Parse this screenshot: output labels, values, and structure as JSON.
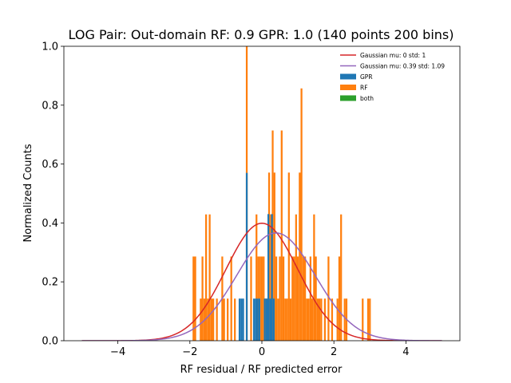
{
  "chart_data": {
    "type": "bar",
    "title": "LOG Pair: Out-domain RF: 0.9 GPR: 1.0 (140 points 200 bins)",
    "xlabel": "RF residual / RF predicted error",
    "ylabel": "Normalized Counts",
    "xlim": [
      -5.5,
      5.5
    ],
    "ylim": [
      0,
      1.0
    ],
    "xticks": [
      -4,
      -2,
      0,
      2,
      4
    ],
    "yticks": [
      0.0,
      0.2,
      0.4,
      0.6,
      0.8,
      1.0
    ],
    "xtick_labels": [
      "−4",
      "−2",
      "0",
      "2",
      "4"
    ],
    "ytick_labels": [
      "0.0",
      "0.2",
      "0.4",
      "0.6",
      "0.8",
      "1.0"
    ],
    "grid": false,
    "legend_position": "top-right",
    "bin_width": 0.05,
    "series": [
      {
        "name": "GPR",
        "kind": "histogram",
        "color": "#1f77b4",
        "bins": [
          {
            "x": -0.62,
            "y": 0.143
          },
          {
            "x": -0.57,
            "y": 0.143
          },
          {
            "x": -0.52,
            "y": 0.143
          },
          {
            "x": -0.42,
            "y": 0.57
          },
          {
            "x": -0.22,
            "y": 0.143
          },
          {
            "x": -0.17,
            "y": 0.143
          },
          {
            "x": -0.12,
            "y": 0.143
          },
          {
            "x": -0.07,
            "y": 0.143
          },
          {
            "x": 0.08,
            "y": 0.143
          },
          {
            "x": 0.13,
            "y": 0.143
          },
          {
            "x": 0.18,
            "y": 0.43
          },
          {
            "x": 0.23,
            "y": 0.143
          },
          {
            "x": 0.28,
            "y": 0.43
          },
          {
            "x": 0.33,
            "y": 0.143
          }
        ]
      },
      {
        "name": "RF",
        "kind": "histogram",
        "color": "#ff7f0e",
        "bins": [
          {
            "x": -1.9,
            "y": 0.286
          },
          {
            "x": -1.85,
            "y": 0.286
          },
          {
            "x": -1.7,
            "y": 0.143
          },
          {
            "x": -1.65,
            "y": 0.286
          },
          {
            "x": -1.6,
            "y": 0.143
          },
          {
            "x": -1.55,
            "y": 0.429
          },
          {
            "x": -1.5,
            "y": 0.143
          },
          {
            "x": -1.45,
            "y": 0.429
          },
          {
            "x": -1.4,
            "y": 0.143
          },
          {
            "x": -1.35,
            "y": 0.143
          },
          {
            "x": -1.25,
            "y": 0.143
          },
          {
            "x": -1.1,
            "y": 0.286
          },
          {
            "x": -1.05,
            "y": 0.143
          },
          {
            "x": -0.95,
            "y": 0.143
          },
          {
            "x": -0.85,
            "y": 0.286
          },
          {
            "x": -0.75,
            "y": 0.143
          },
          {
            "x": -0.42,
            "y": 1.0
          },
          {
            "x": -0.3,
            "y": 0.286
          },
          {
            "x": -0.15,
            "y": 0.429
          },
          {
            "x": -0.1,
            "y": 0.286
          },
          {
            "x": -0.05,
            "y": 0.286
          },
          {
            "x": 0.0,
            "y": 0.286
          },
          {
            "x": 0.05,
            "y": 0.286
          },
          {
            "x": 0.1,
            "y": 0.143
          },
          {
            "x": 0.15,
            "y": 0.143
          },
          {
            "x": 0.2,
            "y": 0.571
          },
          {
            "x": 0.25,
            "y": 0.429
          },
          {
            "x": 0.3,
            "y": 0.714
          },
          {
            "x": 0.35,
            "y": 0.571
          },
          {
            "x": 0.4,
            "y": 0.286
          },
          {
            "x": 0.45,
            "y": 0.143
          },
          {
            "x": 0.5,
            "y": 0.286
          },
          {
            "x": 0.55,
            "y": 0.714
          },
          {
            "x": 0.6,
            "y": 0.286
          },
          {
            "x": 0.65,
            "y": 0.143
          },
          {
            "x": 0.7,
            "y": 0.143
          },
          {
            "x": 0.75,
            "y": 0.571
          },
          {
            "x": 0.8,
            "y": 0.143
          },
          {
            "x": 0.85,
            "y": 0.286
          },
          {
            "x": 0.9,
            "y": 0.286
          },
          {
            "x": 0.95,
            "y": 0.429
          },
          {
            "x": 1.0,
            "y": 0.286
          },
          {
            "x": 1.05,
            "y": 0.571
          },
          {
            "x": 1.1,
            "y": 0.857
          },
          {
            "x": 1.15,
            "y": 0.286
          },
          {
            "x": 1.2,
            "y": 0.286
          },
          {
            "x": 1.25,
            "y": 0.143
          },
          {
            "x": 1.3,
            "y": 0.143
          },
          {
            "x": 1.35,
            "y": 0.286
          },
          {
            "x": 1.4,
            "y": 0.143
          },
          {
            "x": 1.45,
            "y": 0.429
          },
          {
            "x": 1.5,
            "y": 0.286
          },
          {
            "x": 1.55,
            "y": 0.143
          },
          {
            "x": 1.6,
            "y": 0.143
          },
          {
            "x": 1.65,
            "y": 0.143
          },
          {
            "x": 1.75,
            "y": 0.143
          },
          {
            "x": 1.85,
            "y": 0.286
          },
          {
            "x": 1.95,
            "y": 0.143
          },
          {
            "x": 2.1,
            "y": 0.143
          },
          {
            "x": 2.15,
            "y": 0.286
          },
          {
            "x": 2.2,
            "y": 0.429
          },
          {
            "x": 2.3,
            "y": 0.143
          },
          {
            "x": 2.35,
            "y": 0.143
          },
          {
            "x": 2.8,
            "y": 0.143
          },
          {
            "x": 2.95,
            "y": 0.143
          },
          {
            "x": 3.0,
            "y": 0.143
          }
        ]
      },
      {
        "name": "both",
        "kind": "histogram",
        "color": "#2ca02c",
        "bins": []
      }
    ],
    "curves": [
      {
        "name": "Gaussian mu: 0 std: 1",
        "kind": "gaussian",
        "mu": 0,
        "std": 1,
        "color": "#d62728",
        "x_range": [
          -5,
          5
        ]
      },
      {
        "name": "Gaussian mu: 0.39 std: 1.09",
        "kind": "gaussian",
        "mu": 0.39,
        "std": 1.09,
        "color": "#9467bd",
        "x_range": [
          -5,
          5
        ]
      }
    ]
  }
}
